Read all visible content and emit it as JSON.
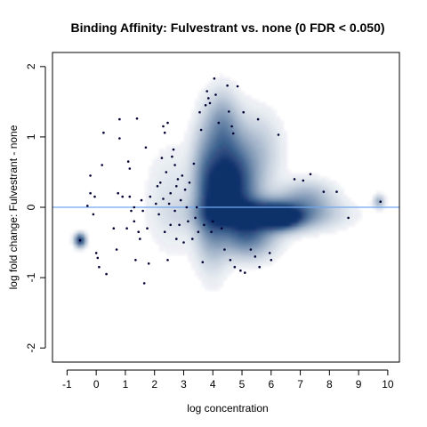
{
  "chart_data": {
    "type": "scatter",
    "title": "Binding Affinity: Fulvestrant vs. none (0 FDR < 0.050)",
    "xlabel": "log concentration",
    "ylabel": "log fold change: Fulvestrant - none",
    "xlim": [
      -1.5,
      10.4
    ],
    "ylim": [
      -2.2,
      2.2
    ],
    "x_ticks": [
      "-1",
      "0",
      "1",
      "2",
      "3",
      "4",
      "5",
      "6",
      "7",
      "8",
      "9",
      "10"
    ],
    "y_ticks": [
      "-2",
      "-1",
      "0",
      "1",
      "2"
    ],
    "reference_line": {
      "y": 0,
      "color": "#6fa8f0"
    },
    "density_color": "#08306b",
    "point_color": "#000033",
    "density": [
      {
        "x": 5.8,
        "y": -0.1,
        "sx": 1.25,
        "sy": 0.14,
        "w": 1.0
      },
      {
        "x": 6.3,
        "y": -0.15,
        "sx": 0.45,
        "sy": 0.1,
        "w": 1.0
      },
      {
        "x": 4.7,
        "y": 0.25,
        "sx": 0.55,
        "sy": 0.35,
        "w": 0.8
      },
      {
        "x": 4.5,
        "y": 0.7,
        "sx": 0.5,
        "sy": 0.4,
        "w": 0.45
      },
      {
        "x": 4.3,
        "y": 1.2,
        "sx": 0.35,
        "sy": 0.3,
        "w": 0.3
      },
      {
        "x": 5.2,
        "y": -0.4,
        "sx": 0.6,
        "sy": 0.2,
        "w": 0.6
      },
      {
        "x": 4.0,
        "y": 0.0,
        "sx": 0.35,
        "sy": 0.5,
        "w": 0.5
      },
      {
        "x": 7.2,
        "y": 0.15,
        "sx": 0.6,
        "sy": 0.15,
        "w": 0.3
      },
      {
        "x": 3.7,
        "y": 0.4,
        "sx": 0.3,
        "sy": 0.5,
        "w": 0.25
      },
      {
        "x": 5.6,
        "y": 0.8,
        "sx": 0.5,
        "sy": 0.35,
        "w": 0.2
      },
      {
        "x": 2.6,
        "y": 0.1,
        "sx": 0.6,
        "sy": 0.5,
        "w": 0.1
      },
      {
        "x": -0.55,
        "y": -0.47,
        "sx": 0.12,
        "sy": 0.06,
        "w": 1.0
      },
      {
        "x": 9.7,
        "y": 0.08,
        "sx": 0.12,
        "sy": 0.06,
        "w": 0.35
      }
    ],
    "points": [
      [
        -0.55,
        -0.47
      ],
      [
        -0.3,
        0.02
      ],
      [
        -0.2,
        0.2
      ],
      [
        -0.2,
        0.45
      ],
      [
        -0.1,
        -0.1
      ],
      [
        -0.05,
        0.15
      ],
      [
        0.0,
        -0.65
      ],
      [
        0.05,
        -0.72
      ],
      [
        0.1,
        -0.85
      ],
      [
        0.2,
        0.6
      ],
      [
        0.25,
        1.06
      ],
      [
        0.35,
        -0.95
      ],
      [
        0.6,
        -0.3
      ],
      [
        0.7,
        -0.6
      ],
      [
        0.75,
        0.2
      ],
      [
        0.8,
        0.98
      ],
      [
        0.8,
        1.25
      ],
      [
        0.9,
        0.15
      ],
      [
        1.05,
        -0.3
      ],
      [
        1.1,
        0.65
      ],
      [
        1.15,
        0.55
      ],
      [
        1.15,
        0.15
      ],
      [
        1.2,
        -0.05
      ],
      [
        1.3,
        0.0
      ],
      [
        1.3,
        -0.2
      ],
      [
        1.35,
        -0.75
      ],
      [
        1.4,
        1.26
      ],
      [
        1.45,
        -0.35
      ],
      [
        1.5,
        -0.45
      ],
      [
        1.55,
        0.1
      ],
      [
        1.6,
        -0.05
      ],
      [
        1.65,
        -1.08
      ],
      [
        1.7,
        0.85
      ],
      [
        1.75,
        -0.3
      ],
      [
        1.8,
        -0.8
      ],
      [
        1.85,
        0.15
      ],
      [
        2.05,
        0.05
      ],
      [
        2.1,
        0.3
      ],
      [
        2.15,
        -0.1
      ],
      [
        2.2,
        0.35
      ],
      [
        2.25,
        0.7
      ],
      [
        2.3,
        1.15
      ],
      [
        2.3,
        0.12
      ],
      [
        2.35,
        1.06
      ],
      [
        2.35,
        -0.35
      ],
      [
        2.4,
        0.5
      ],
      [
        2.45,
        1.2
      ],
      [
        2.45,
        -0.75
      ],
      [
        2.5,
        0.05
      ],
      [
        2.55,
        0.2
      ],
      [
        2.55,
        -0.25
      ],
      [
        2.6,
        0.72
      ],
      [
        2.65,
        0.82
      ],
      [
        2.7,
        0.6
      ],
      [
        2.7,
        -0.05
      ],
      [
        2.75,
        -0.45
      ],
      [
        2.75,
        0.3
      ],
      [
        2.8,
        0.4
      ],
      [
        2.85,
        -0.25
      ],
      [
        2.9,
        0.1
      ],
      [
        2.95,
        0.45
      ],
      [
        3.0,
        -0.5
      ],
      [
        3.05,
        0.25
      ],
      [
        3.1,
        0.0
      ],
      [
        3.15,
        -0.2
      ],
      [
        3.2,
        0.35
      ],
      [
        3.3,
        -0.45
      ],
      [
        3.35,
        0.62
      ],
      [
        3.4,
        -0.15
      ],
      [
        3.45,
        0.0
      ],
      [
        3.5,
        -0.35
      ],
      [
        3.55,
        1.35
      ],
      [
        3.6,
        1.1
      ],
      [
        3.65,
        -0.78
      ],
      [
        3.7,
        -0.25
      ],
      [
        3.75,
        1.45
      ],
      [
        3.8,
        1.65
      ],
      [
        3.85,
        1.55
      ],
      [
        3.9,
        1.48
      ],
      [
        3.95,
        -0.35
      ],
      [
        4.0,
        -0.2
      ],
      [
        4.05,
        1.83
      ],
      [
        4.1,
        1.6
      ],
      [
        4.2,
        1.2
      ],
      [
        4.3,
        -0.3
      ],
      [
        4.4,
        -0.6
      ],
      [
        4.5,
        1.73
      ],
      [
        4.55,
        1.36
      ],
      [
        4.6,
        -0.75
      ],
      [
        4.65,
        1.15
      ],
      [
        4.7,
        1.05
      ],
      [
        4.75,
        -0.85
      ],
      [
        4.85,
        1.72
      ],
      [
        4.95,
        -0.9
      ],
      [
        5.05,
        1.35
      ],
      [
        5.1,
        -0.93
      ],
      [
        5.3,
        -0.6
      ],
      [
        5.45,
        -0.7
      ],
      [
        5.55,
        1.25
      ],
      [
        5.6,
        -0.85
      ],
      [
        5.95,
        -0.65
      ],
      [
        6.0,
        -0.75
      ],
      [
        6.25,
        1.03
      ],
      [
        6.8,
        0.4
      ],
      [
        7.1,
        0.38
      ],
      [
        7.35,
        0.47
      ],
      [
        7.8,
        0.22
      ],
      [
        8.25,
        0.22
      ],
      [
        8.65,
        -0.15
      ],
      [
        9.75,
        0.08
      ]
    ]
  }
}
